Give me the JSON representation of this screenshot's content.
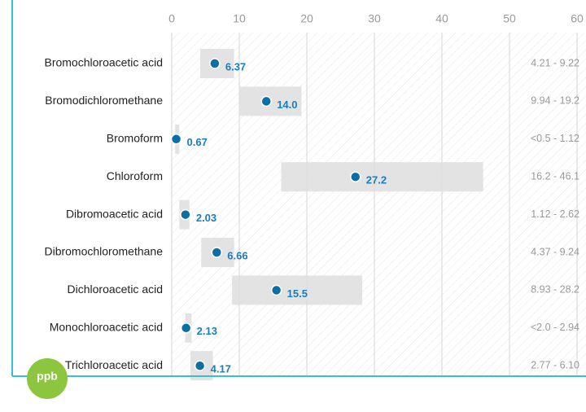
{
  "chart_data": {
    "type": "dot_range",
    "categories": [
      "Bromochloroacetic acid",
      "Bromodichloromethane",
      "Bromoform",
      "Chloroform",
      "Dibromoacetic acid",
      "Dibromochloromethane",
      "Dichloroacetic acid",
      "Monochloroacetic acid",
      "Trichloroacetic acid"
    ],
    "values": [
      6.37,
      14.0,
      0.67,
      27.2,
      2.03,
      6.66,
      15.5,
      2.13,
      4.17
    ],
    "value_labels": [
      "6.37",
      "14.0",
      "0.67",
      "27.2",
      "2.03",
      "6.66",
      "15.5",
      "2.13",
      "4.17"
    ],
    "ranges": [
      {
        "low": 4.21,
        "high": 9.22,
        "label": "4.21 - 9.22"
      },
      {
        "low": 9.94,
        "high": 19.2,
        "label": "9.94 - 19.2"
      },
      {
        "low": 0.5,
        "high": 1.12,
        "label": "<0.5 - 1.12"
      },
      {
        "low": 16.2,
        "high": 46.1,
        "label": "16.2 - 46.1"
      },
      {
        "low": 1.12,
        "high": 2.62,
        "label": "1.12 - 2.62"
      },
      {
        "low": 4.37,
        "high": 9.24,
        "label": "4.37 - 9.24"
      },
      {
        "low": 8.93,
        "high": 28.2,
        "label": "8.93 - 28.2"
      },
      {
        "low": 2.0,
        "high": 2.94,
        "label": "<2.0 - 2.94"
      },
      {
        "low": 2.77,
        "high": 6.1,
        "label": "2.77 - 6.10"
      }
    ],
    "xlim": [
      0,
      60
    ],
    "xticks": [
      0,
      10,
      20,
      30,
      40,
      50,
      60
    ],
    "grid": true,
    "unit": "ppb",
    "color": "#0b6ea6",
    "label_color": "#1a7dbf",
    "range_color": "#dedede",
    "badge_color": "#8cc63f",
    "frame_color": "#35c0d8"
  }
}
